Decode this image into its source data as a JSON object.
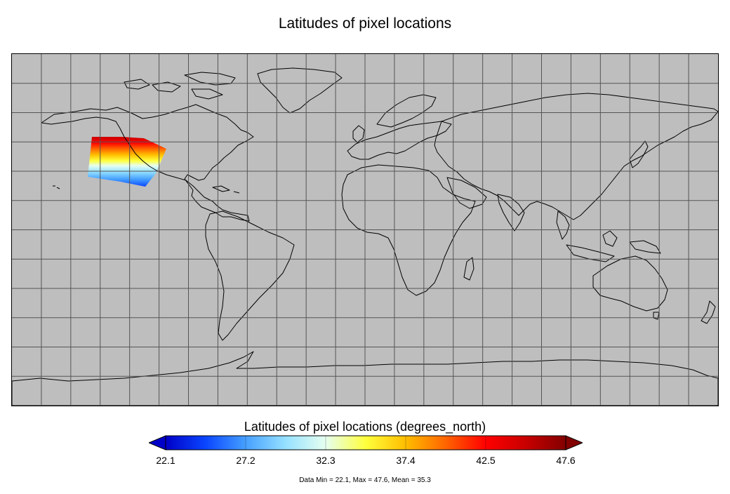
{
  "title": "Latitudes of pixel locations",
  "colorbar": {
    "title": "Latitudes of pixel locations (degrees_north)",
    "ticks": [
      "22.1",
      "27.2",
      "32.3",
      "37.4",
      "42.5",
      "47.6"
    ],
    "colors": [
      "#0000c8",
      "#0a46ff",
      "#46a0ff",
      "#96e1ff",
      "#e6fff0",
      "#ffff3c",
      "#ffbe00",
      "#ff6400",
      "#ff0000",
      "#c80000",
      "#820000"
    ]
  },
  "stats": "Data Min = 22.1, Max = 47.6, Mean = 35.3",
  "map": {
    "background": "#bebebe",
    "grid_color": "#555555",
    "coast_color": "#000000",
    "projection": "equirectangular",
    "lon_range": [
      -180,
      180
    ],
    "lat_range": [
      -90,
      90
    ],
    "grid_spacing_lon": 15,
    "grid_spacing_lat": 15,
    "swath": {
      "data_min": 22.1,
      "data_max": 47.6,
      "mean": 35.3
    }
  }
}
